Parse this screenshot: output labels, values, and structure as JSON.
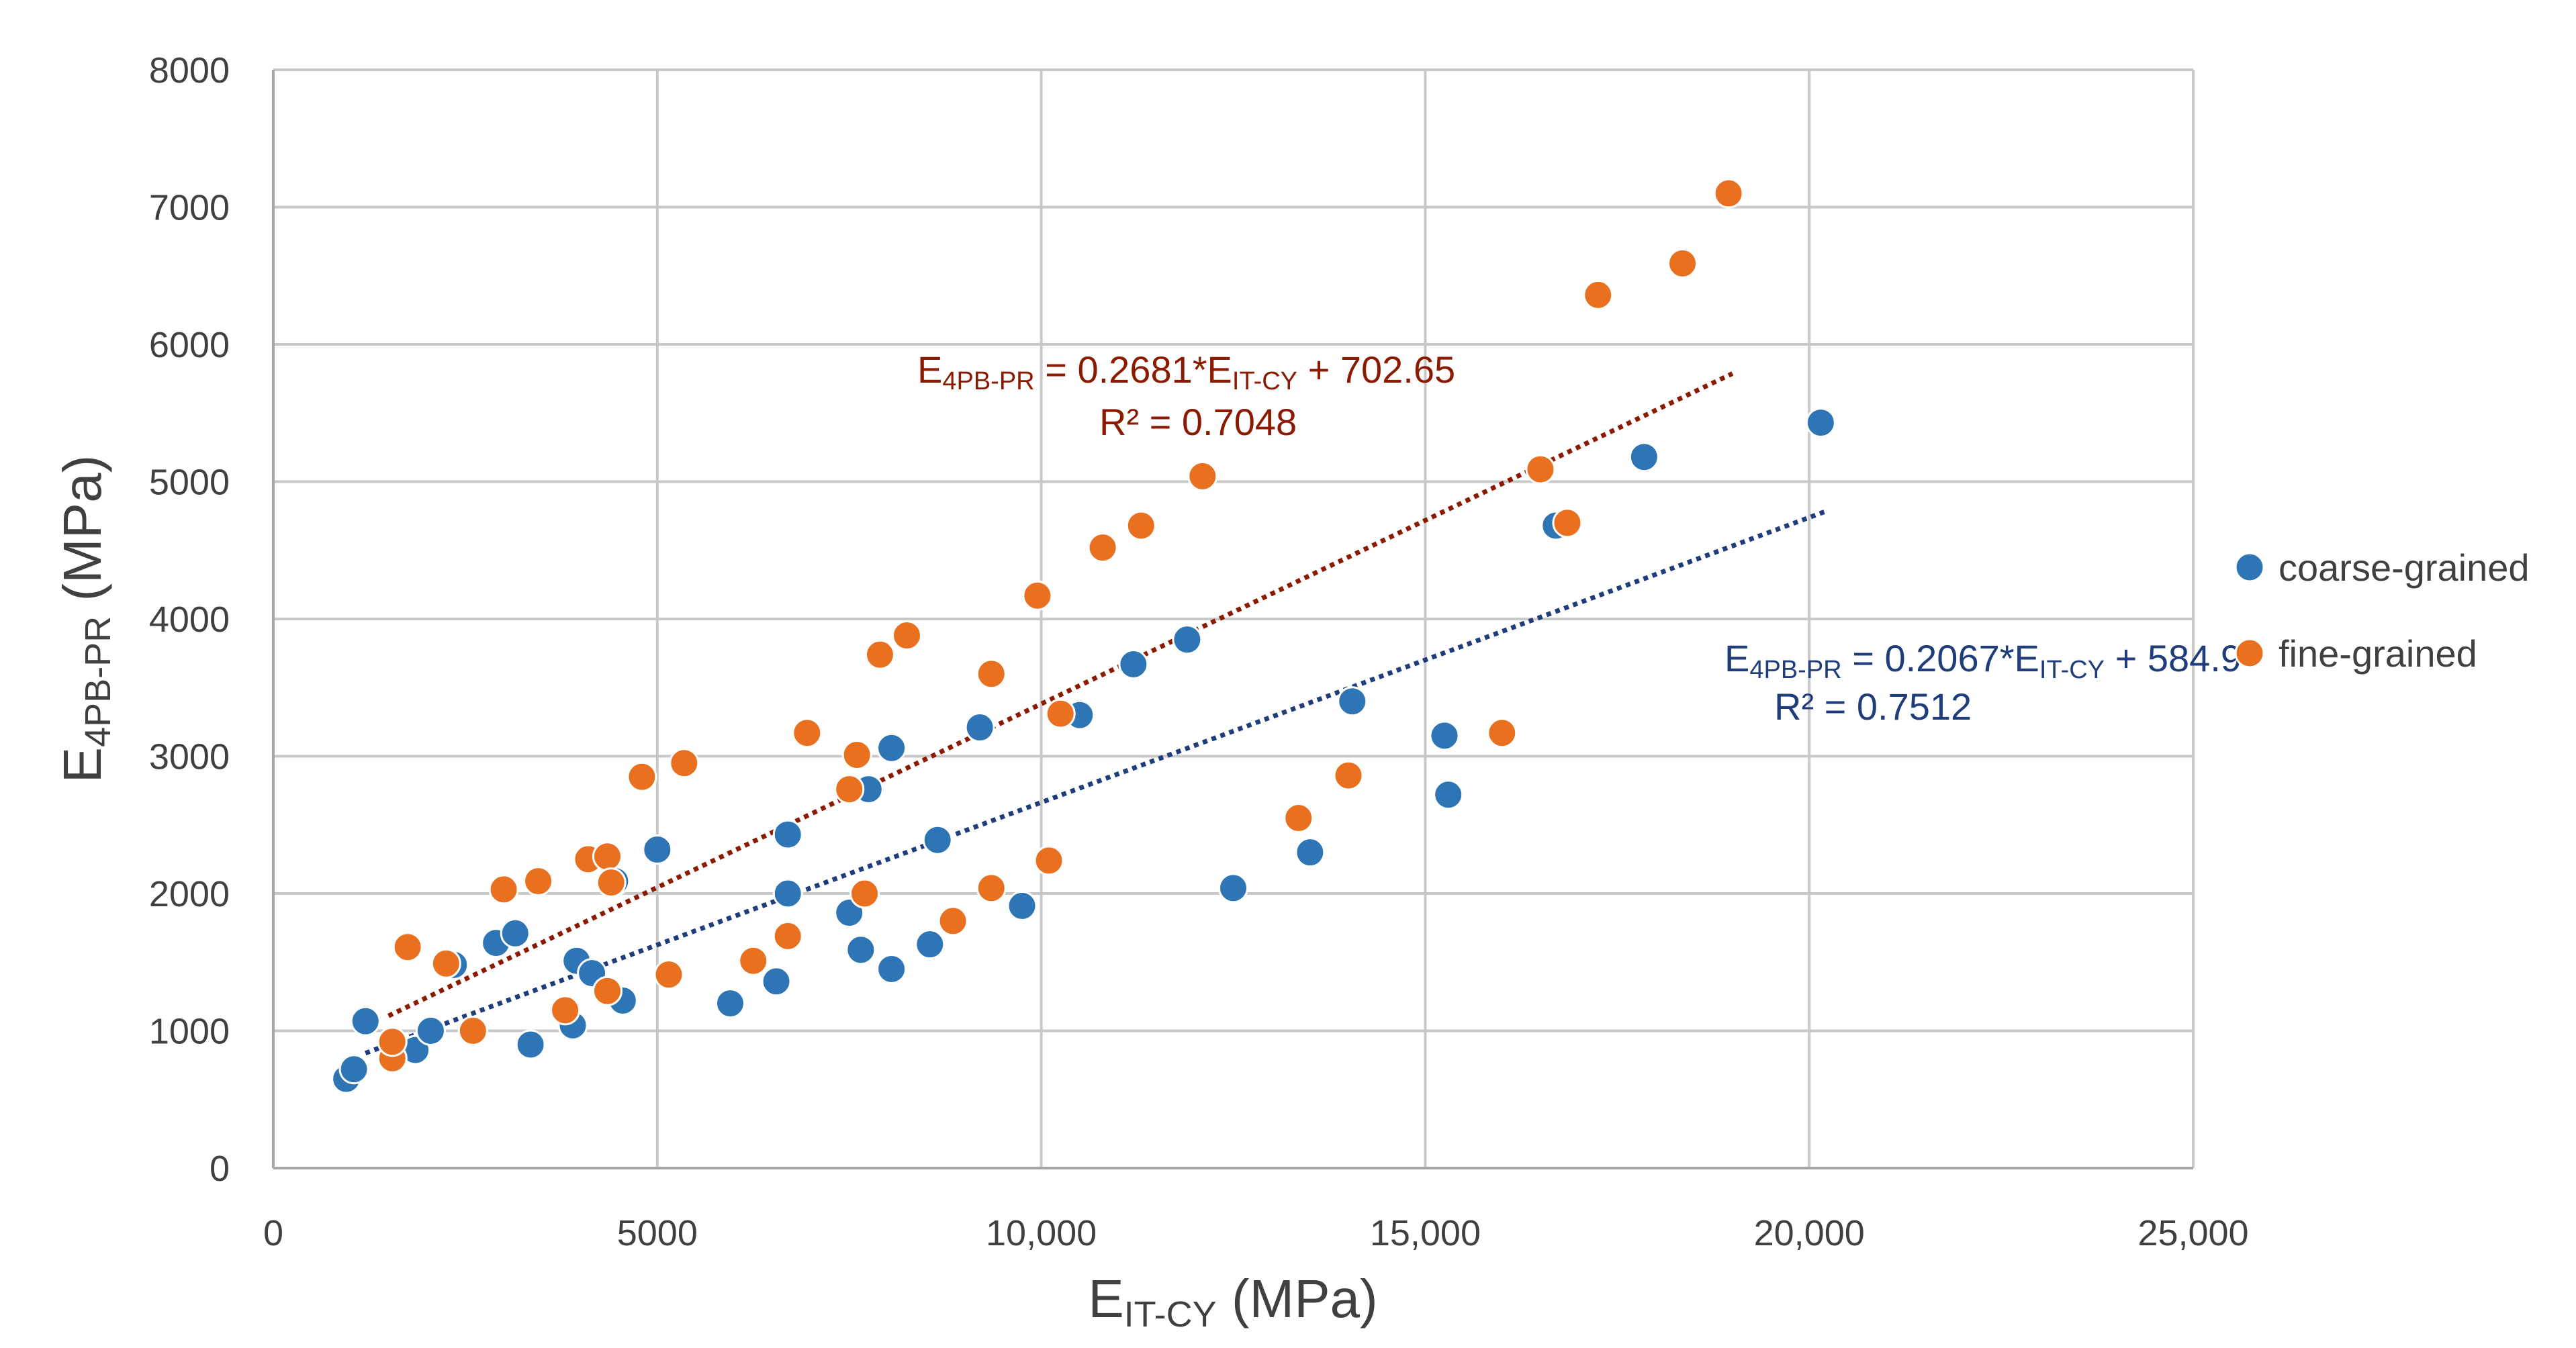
{
  "chart_data": {
    "type": "scatter",
    "title": "",
    "xlabel": {
      "main": "E",
      "sub": "IT-CY",
      "rest": " (MPa)"
    },
    "ylabel": {
      "main": "E",
      "sub": "4PB-PR",
      "rest": " (MPa)"
    },
    "xlim": [
      0,
      25000
    ],
    "ylim": [
      0,
      8000
    ],
    "x_ticks": [
      0,
      5000,
      10000,
      15000,
      20000,
      25000
    ],
    "x_tick_labels": [
      "0",
      "5000",
      "10,000",
      "15,000",
      "20,000",
      "25,000"
    ],
    "y_ticks": [
      0,
      1000,
      2000,
      3000,
      4000,
      5000,
      6000,
      7000,
      8000
    ],
    "y_tick_labels": [
      "0",
      "1000",
      "2000",
      "3000",
      "4000",
      "5000",
      "6000",
      "7000",
      "8000"
    ],
    "grid": true,
    "legend_position": "right",
    "series": [
      {
        "name": "coarse-grained",
        "color": "#2E75B6",
        "trend_color": "#1F3D7A",
        "points": [
          [
            950,
            650
          ],
          [
            1050,
            720
          ],
          [
            1200,
            1070
          ],
          [
            1850,
            860
          ],
          [
            2050,
            1000
          ],
          [
            2350,
            1480
          ],
          [
            2900,
            1640
          ],
          [
            3150,
            1710
          ],
          [
            3350,
            900
          ],
          [
            3900,
            1040
          ],
          [
            3950,
            1510
          ],
          [
            4150,
            1420
          ],
          [
            4450,
            2090
          ],
          [
            4550,
            1220
          ],
          [
            5000,
            2320
          ],
          [
            5950,
            1200
          ],
          [
            6550,
            1360
          ],
          [
            6700,
            2430
          ],
          [
            6700,
            2000
          ],
          [
            7500,
            1860
          ],
          [
            7650,
            1590
          ],
          [
            7750,
            2760
          ],
          [
            8050,
            3060
          ],
          [
            8050,
            1450
          ],
          [
            8550,
            1630
          ],
          [
            8650,
            2390
          ],
          [
            9200,
            3210
          ],
          [
            9750,
            1910
          ],
          [
            10500,
            3300
          ],
          [
            11200,
            3670
          ],
          [
            11900,
            3850
          ],
          [
            12500,
            2040
          ],
          [
            13500,
            2300
          ],
          [
            14050,
            3400
          ],
          [
            15250,
            3150
          ],
          [
            15300,
            2720
          ],
          [
            16700,
            4680
          ],
          [
            17850,
            5180
          ],
          [
            20150,
            5430
          ]
        ],
        "trendline": {
          "equation": {
            "lhs_main": "E",
            "lhs_sub": "4PB-PR",
            "mid": " = 0.2067*E",
            "mid_sub": "IT-CY",
            "tail": " + 584.9"
          },
          "r2": "R² = 0.7512",
          "x_range": [
            1200,
            20200
          ]
        }
      },
      {
        "name": "fine-grained",
        "color": "#E8701F",
        "trend_color": "#8B1A00",
        "points": [
          [
            1550,
            800
          ],
          [
            1550,
            920
          ],
          [
            1750,
            1610
          ],
          [
            2250,
            1490
          ],
          [
            2600,
            1000
          ],
          [
            3000,
            2030
          ],
          [
            3450,
            2090
          ],
          [
            3800,
            1150
          ],
          [
            4100,
            2250
          ],
          [
            4350,
            2270
          ],
          [
            4350,
            1290
          ],
          [
            4400,
            2080
          ],
          [
            4800,
            2850
          ],
          [
            5150,
            1410
          ],
          [
            5350,
            2950
          ],
          [
            6250,
            1510
          ],
          [
            6700,
            1690
          ],
          [
            6950,
            3170
          ],
          [
            7500,
            2760
          ],
          [
            7600,
            3010
          ],
          [
            7700,
            2000
          ],
          [
            7900,
            3740
          ],
          [
            8250,
            3880
          ],
          [
            8850,
            1800
          ],
          [
            9350,
            3600
          ],
          [
            9350,
            2040
          ],
          [
            9950,
            4170
          ],
          [
            10100,
            2240
          ],
          [
            10250,
            3310
          ],
          [
            10800,
            4520
          ],
          [
            11300,
            4680
          ],
          [
            12100,
            5040
          ],
          [
            13350,
            2550
          ],
          [
            14000,
            2860
          ],
          [
            16000,
            3170
          ],
          [
            16500,
            5090
          ],
          [
            16850,
            4700
          ],
          [
            17250,
            6360
          ],
          [
            18350,
            6590
          ],
          [
            18950,
            7100
          ]
        ],
        "trendline": {
          "equation": {
            "lhs_main": "E",
            "lhs_sub": "4PB-PR",
            "mid": " = 0.2681*E",
            "mid_sub": "IT-CY",
            "tail": " + 702.65"
          },
          "r2": "R² = 0.7048",
          "x_range": [
            1500,
            19000
          ]
        }
      }
    ]
  }
}
